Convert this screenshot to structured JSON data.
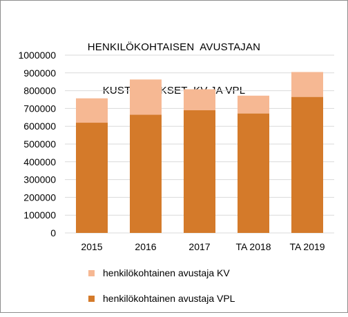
{
  "chart_data": {
    "type": "bar",
    "stacked": true,
    "title": [
      "HENKILÖKOHTAISEN  AVUSTAJAN",
      "KUSTANNUKSET  KV JA VPL"
    ],
    "categories": [
      "2015",
      "2016",
      "2017",
      "TA 2018",
      "TA 2019"
    ],
    "series": [
      {
        "name": "henkilökohtainen avustaja VPL",
        "color": "#d47a2a",
        "values": [
          620000,
          665000,
          690000,
          672000,
          765000
        ]
      },
      {
        "name": "henkilökohtainen avustaja KV",
        "color": "#f6b893",
        "values": [
          137000,
          198000,
          118000,
          100000,
          140000
        ]
      }
    ],
    "ylim": [
      0,
      1000000
    ],
    "yticks": [
      "0",
      "100000",
      "200000",
      "300000",
      "400000",
      "500000",
      "600000",
      "700000",
      "800000",
      "900000",
      "1000000"
    ],
    "grid": true,
    "legend_position": "bottom",
    "legend_order": [
      1,
      0
    ]
  }
}
